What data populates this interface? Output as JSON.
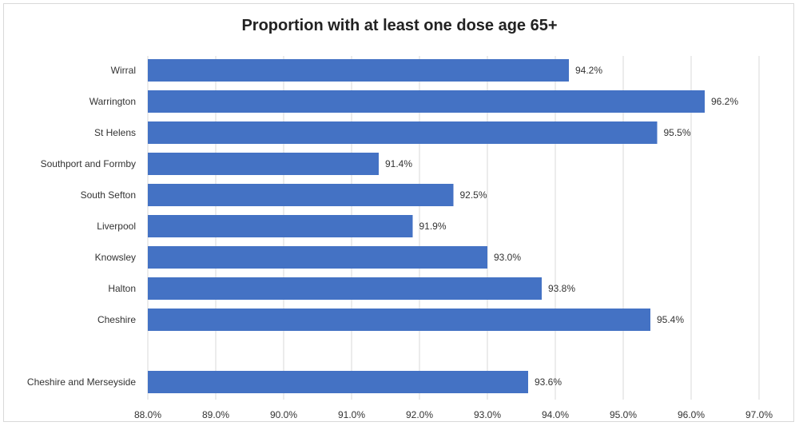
{
  "chart_data": {
    "type": "bar",
    "orientation": "horizontal",
    "title": "Proportion with at least one dose age 65+",
    "categories": [
      "Wirral",
      "Warrington",
      "St Helens",
      "Southport and Formby",
      "South Sefton",
      "Liverpool",
      "Knowsley",
      "Halton",
      "Cheshire",
      "Cheshire and Merseyside"
    ],
    "values": [
      94.2,
      96.2,
      95.5,
      91.4,
      92.5,
      91.9,
      93.0,
      93.8,
      95.4,
      93.6
    ],
    "value_labels": [
      "94.2%",
      "96.2%",
      "95.5%",
      "91.4%",
      "92.5%",
      "91.9%",
      "93.0%",
      "93.8%",
      "95.4%",
      "93.6%"
    ],
    "xlim": [
      88.0,
      97.0
    ],
    "xticks": [
      88,
      89,
      90,
      91,
      92,
      93,
      94,
      95,
      96,
      97
    ],
    "xtick_labels": [
      "88.0%",
      "89.0%",
      "90.0%",
      "91.0%",
      "92.0%",
      "93.0%",
      "94.0%",
      "95.0%",
      "96.0%",
      "97.0%"
    ],
    "grid": "vertical",
    "bar_color": "#4472c4",
    "grid_color": "#d9d9d9"
  }
}
